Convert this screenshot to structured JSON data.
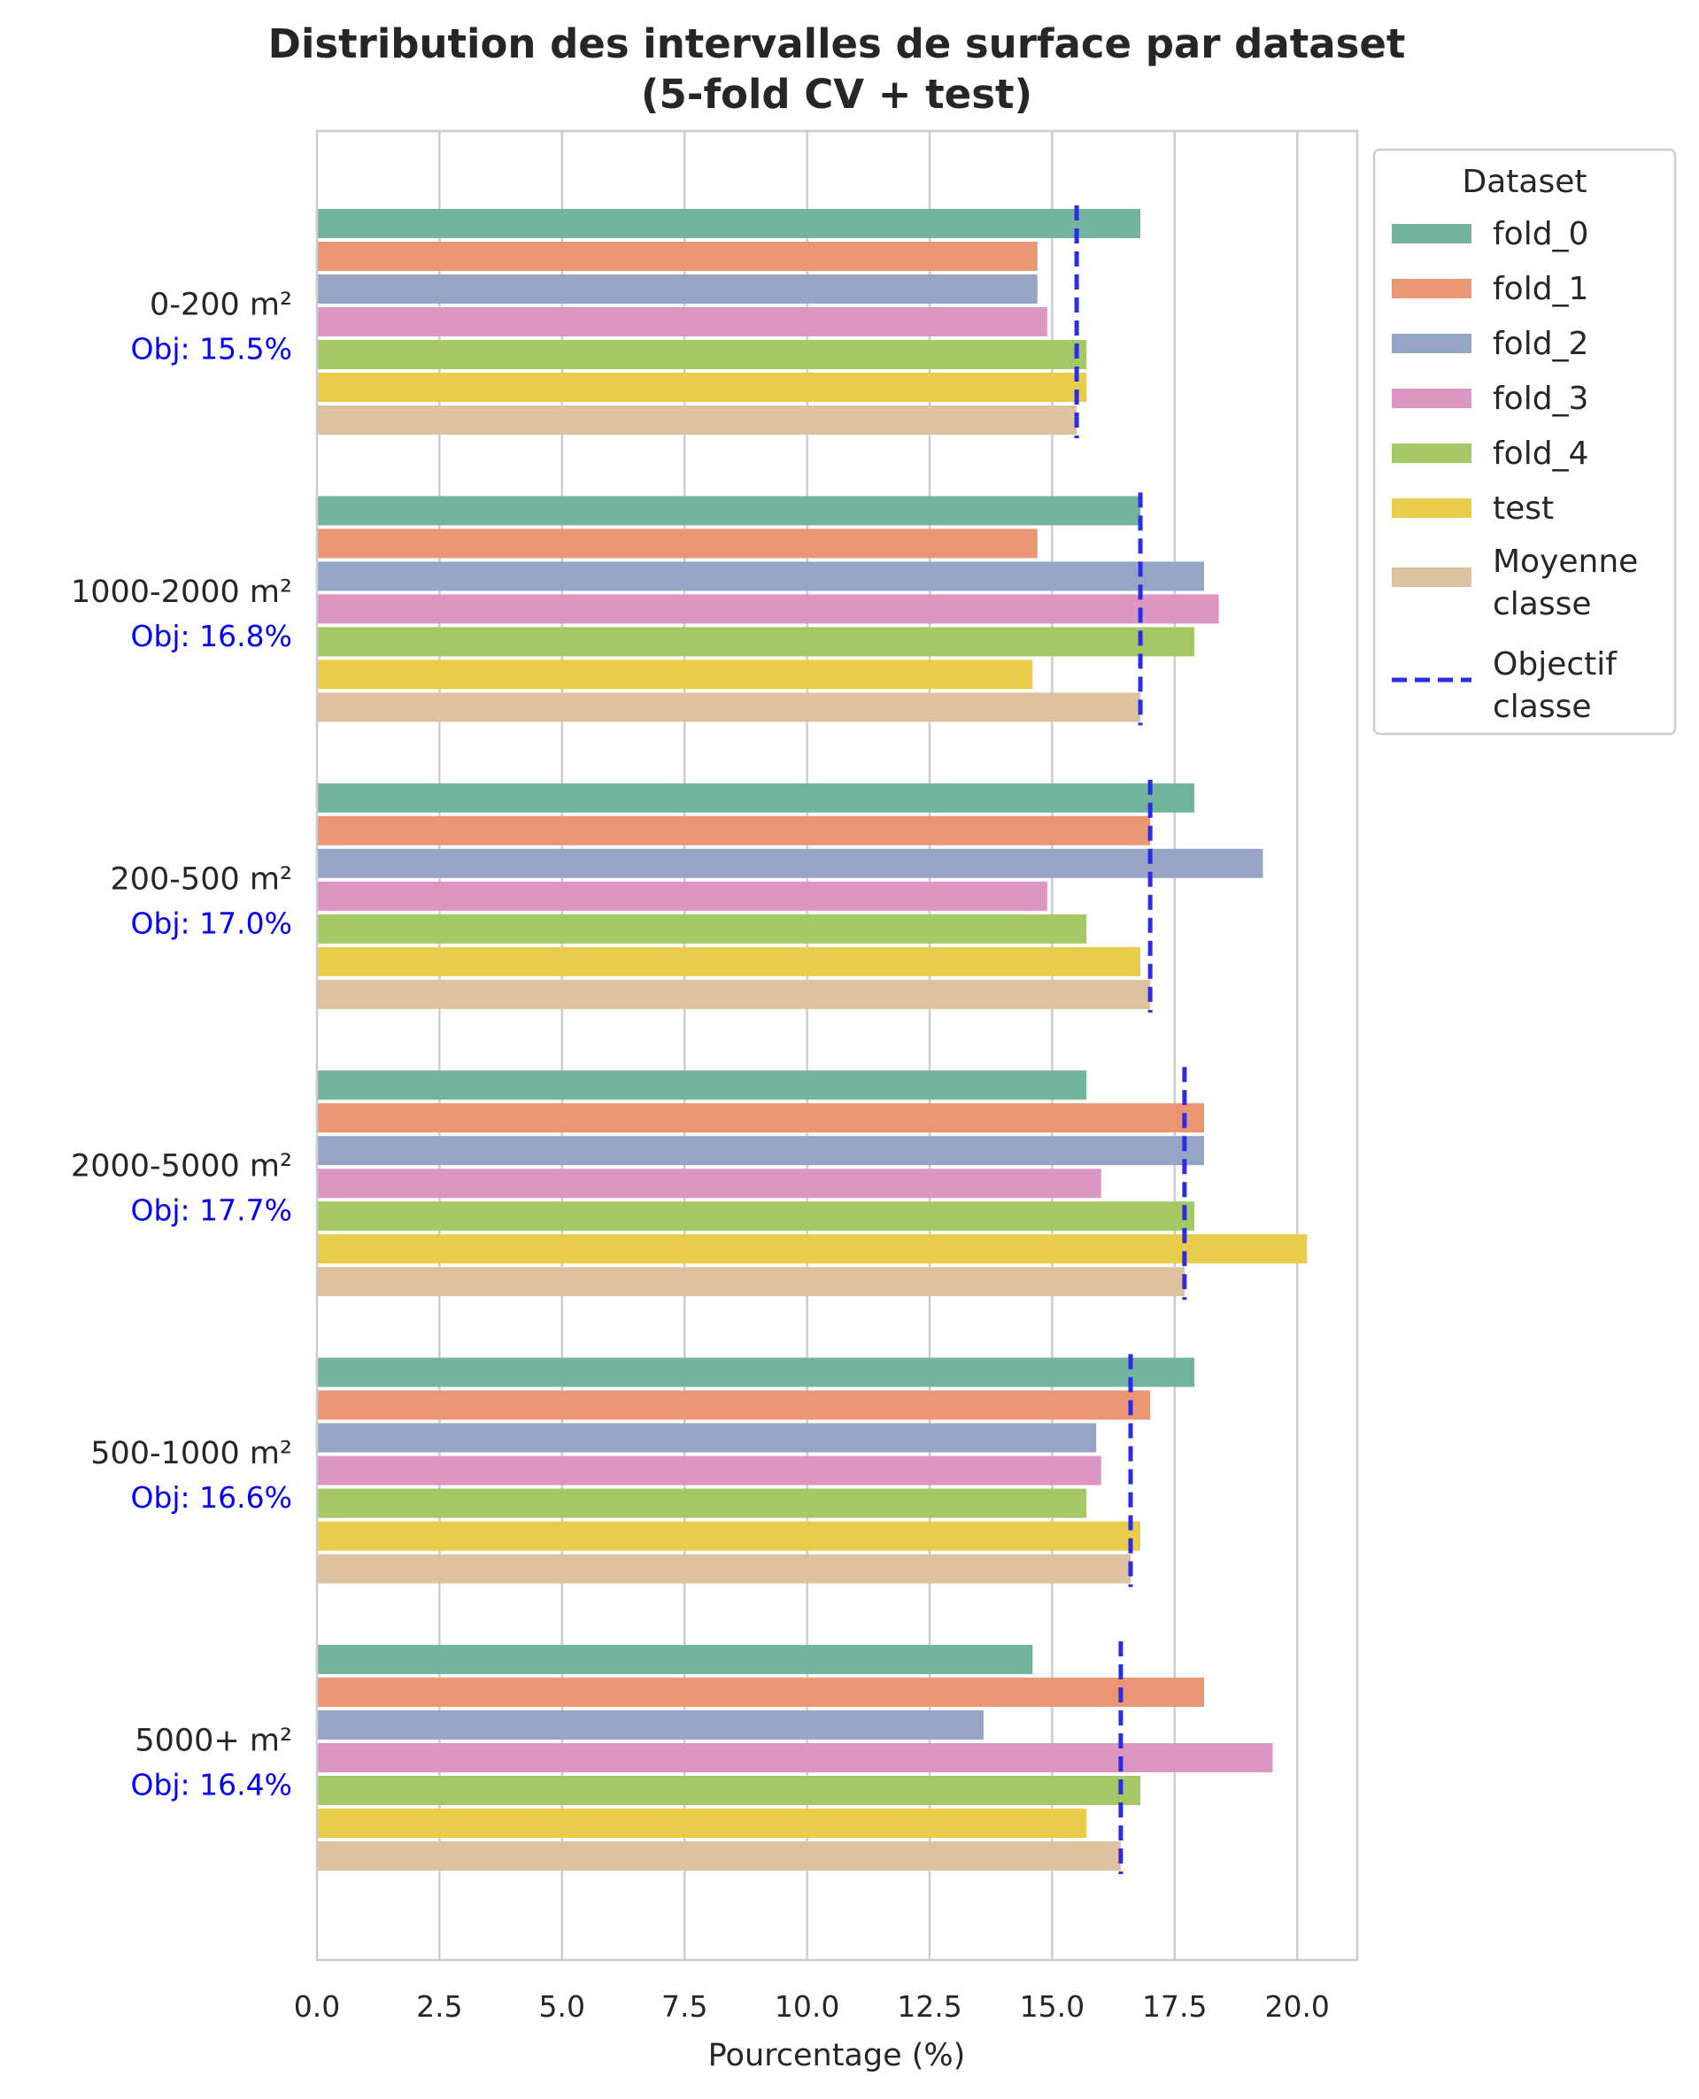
{
  "chart_data": {
    "type": "bar",
    "orientation": "horizontal",
    "title": "Distribution des intervalles de surface par dataset",
    "subtitle": "(5-fold CV + test)",
    "xlabel": "Pourcentage (%)",
    "ylabel": "",
    "xlim": [
      0,
      21.2
    ],
    "xticks": [
      "0.0",
      "2.5",
      "5.0",
      "7.5",
      "10.0",
      "12.5",
      "15.0",
      "17.5",
      "20.0"
    ],
    "grid": true,
    "legend_title": "Dataset",
    "legend_position": "top-right outside",
    "categories": [
      "0-200 m²",
      "1000-2000 m²",
      "200-500 m²",
      "2000-5000 m²",
      "500-1000 m²",
      "5000+ m²"
    ],
    "objective_labels": [
      "Obj: 15.5%",
      "Obj: 16.8%",
      "Obj: 17.0%",
      "Obj: 17.7%",
      "Obj: 16.6%",
      "Obj: 16.4%"
    ],
    "objectives": [
      15.5,
      16.8,
      17.0,
      17.7,
      16.6,
      16.4
    ],
    "series": [
      {
        "name": "fold_0",
        "color": "#73b49f",
        "values": [
          16.8,
          16.8,
          17.9,
          15.7,
          17.9,
          14.6
        ]
      },
      {
        "name": "fold_1",
        "color": "#ea9675",
        "values": [
          14.7,
          14.7,
          17.0,
          18.1,
          17.0,
          18.1
        ]
      },
      {
        "name": "fold_2",
        "color": "#96a5c6",
        "values": [
          14.7,
          18.1,
          19.3,
          18.1,
          15.9,
          13.6
        ]
      },
      {
        "name": "fold_3",
        "color": "#dc96c2",
        "values": [
          14.9,
          18.4,
          14.9,
          16.0,
          16.0,
          19.5
        ]
      },
      {
        "name": "fold_4",
        "color": "#a3c865",
        "values": [
          15.7,
          17.9,
          15.7,
          17.9,
          15.7,
          16.8
        ]
      },
      {
        "name": "test",
        "color": "#e9cc4a",
        "values": [
          15.7,
          14.6,
          16.8,
          20.2,
          16.8,
          15.7
        ]
      },
      {
        "name": "Moyenne classe",
        "name_lines": [
          "Moyenne",
          "classe"
        ],
        "color": "#dcc29e",
        "values": [
          15.5,
          16.8,
          17.0,
          17.7,
          16.6,
          16.4
        ]
      }
    ],
    "objective_legend": {
      "name_lines": [
        "Objectif",
        "classe"
      ],
      "color": "#2b2bea"
    }
  }
}
